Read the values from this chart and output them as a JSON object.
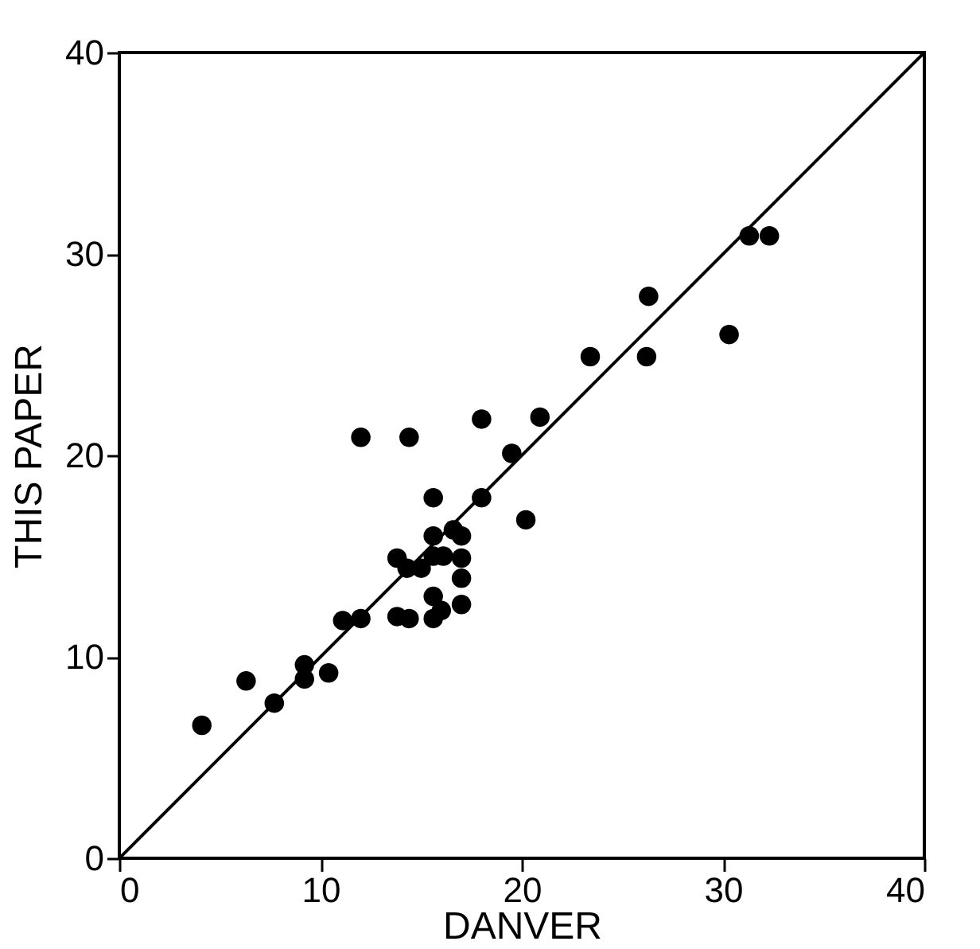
{
  "chart_data": {
    "type": "scatter",
    "xlabel": "DANVER",
    "ylabel": "THIS PAPER",
    "xlim": [
      0,
      40
    ],
    "ylim": [
      0,
      40
    ],
    "xticks": [
      0,
      10,
      20,
      30,
      40
    ],
    "yticks": [
      0,
      10,
      20,
      30,
      40
    ],
    "grid": false,
    "marker": "circle",
    "series": [
      {
        "color": "#000000",
        "x": [
          4.1,
          6.3,
          7.7,
          9.2,
          9.2,
          10.4,
          11.1,
          12.0,
          12.0,
          13.8,
          13.8,
          14.3,
          14.4,
          14.4,
          15.0,
          15.6,
          15.6,
          15.6,
          15.6,
          15.6,
          16.0,
          16.1,
          16.6,
          17.0,
          17.0,
          17.0,
          17.0,
          18.0,
          18.0,
          19.5,
          20.2,
          20.9,
          23.4,
          26.3,
          26.2,
          30.3,
          31.3,
          32.3
        ],
        "values": [
          6.6,
          8.8,
          7.7,
          9.6,
          8.9,
          9.2,
          11.8,
          11.9,
          20.9,
          14.9,
          12.0,
          14.4,
          11.9,
          20.9,
          14.4,
          15.0,
          16.0,
          17.9,
          13.0,
          11.9,
          12.3,
          15.0,
          16.3,
          14.9,
          16.0,
          13.9,
          12.6,
          21.8,
          17.9,
          20.1,
          16.8,
          21.9,
          24.9,
          27.9,
          24.9,
          26.0,
          30.9,
          30.9
        ]
      },
      {
        "type": "line",
        "color": "#000000",
        "line_style": "solid",
        "marker": "none",
        "x": [
          0,
          40
        ],
        "values": [
          0,
          40
        ]
      }
    ]
  }
}
